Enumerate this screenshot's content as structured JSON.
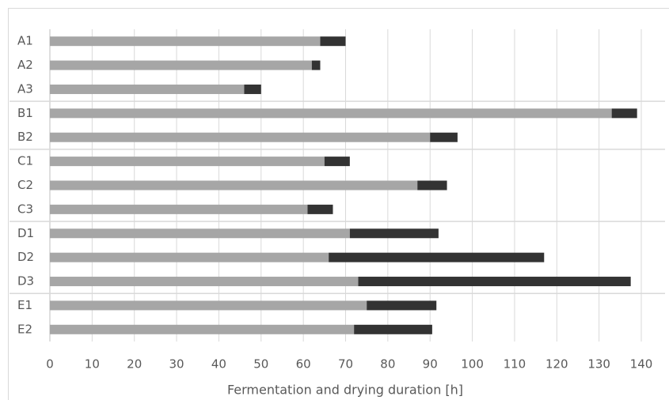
{
  "chart_data": {
    "type": "stacked-barh",
    "categories": [
      "A1",
      "A2",
      "A3",
      "B1",
      "B2",
      "C1",
      "C2",
      "C3",
      "D1",
      "D2",
      "D3",
      "E1",
      "E2"
    ],
    "series": [
      {
        "color": "#a6a6a6",
        "values": [
          64,
          62,
          46,
          133,
          90,
          65,
          87,
          61,
          71,
          66,
          73,
          75,
          72
        ]
      },
      {
        "color": "#333333",
        "values": [
          6,
          2,
          4,
          6,
          6.5,
          6,
          7,
          6,
          21,
          51,
          64.5,
          16.5,
          18.5
        ]
      }
    ],
    "xlabel": "Fermentation and drying duration [h]",
    "xlim": [
      0,
      140
    ],
    "xticks": [
      0,
      10,
      20,
      30,
      40,
      50,
      60,
      70,
      80,
      90,
      100,
      110,
      120,
      130,
      140
    ],
    "grid": true
  }
}
